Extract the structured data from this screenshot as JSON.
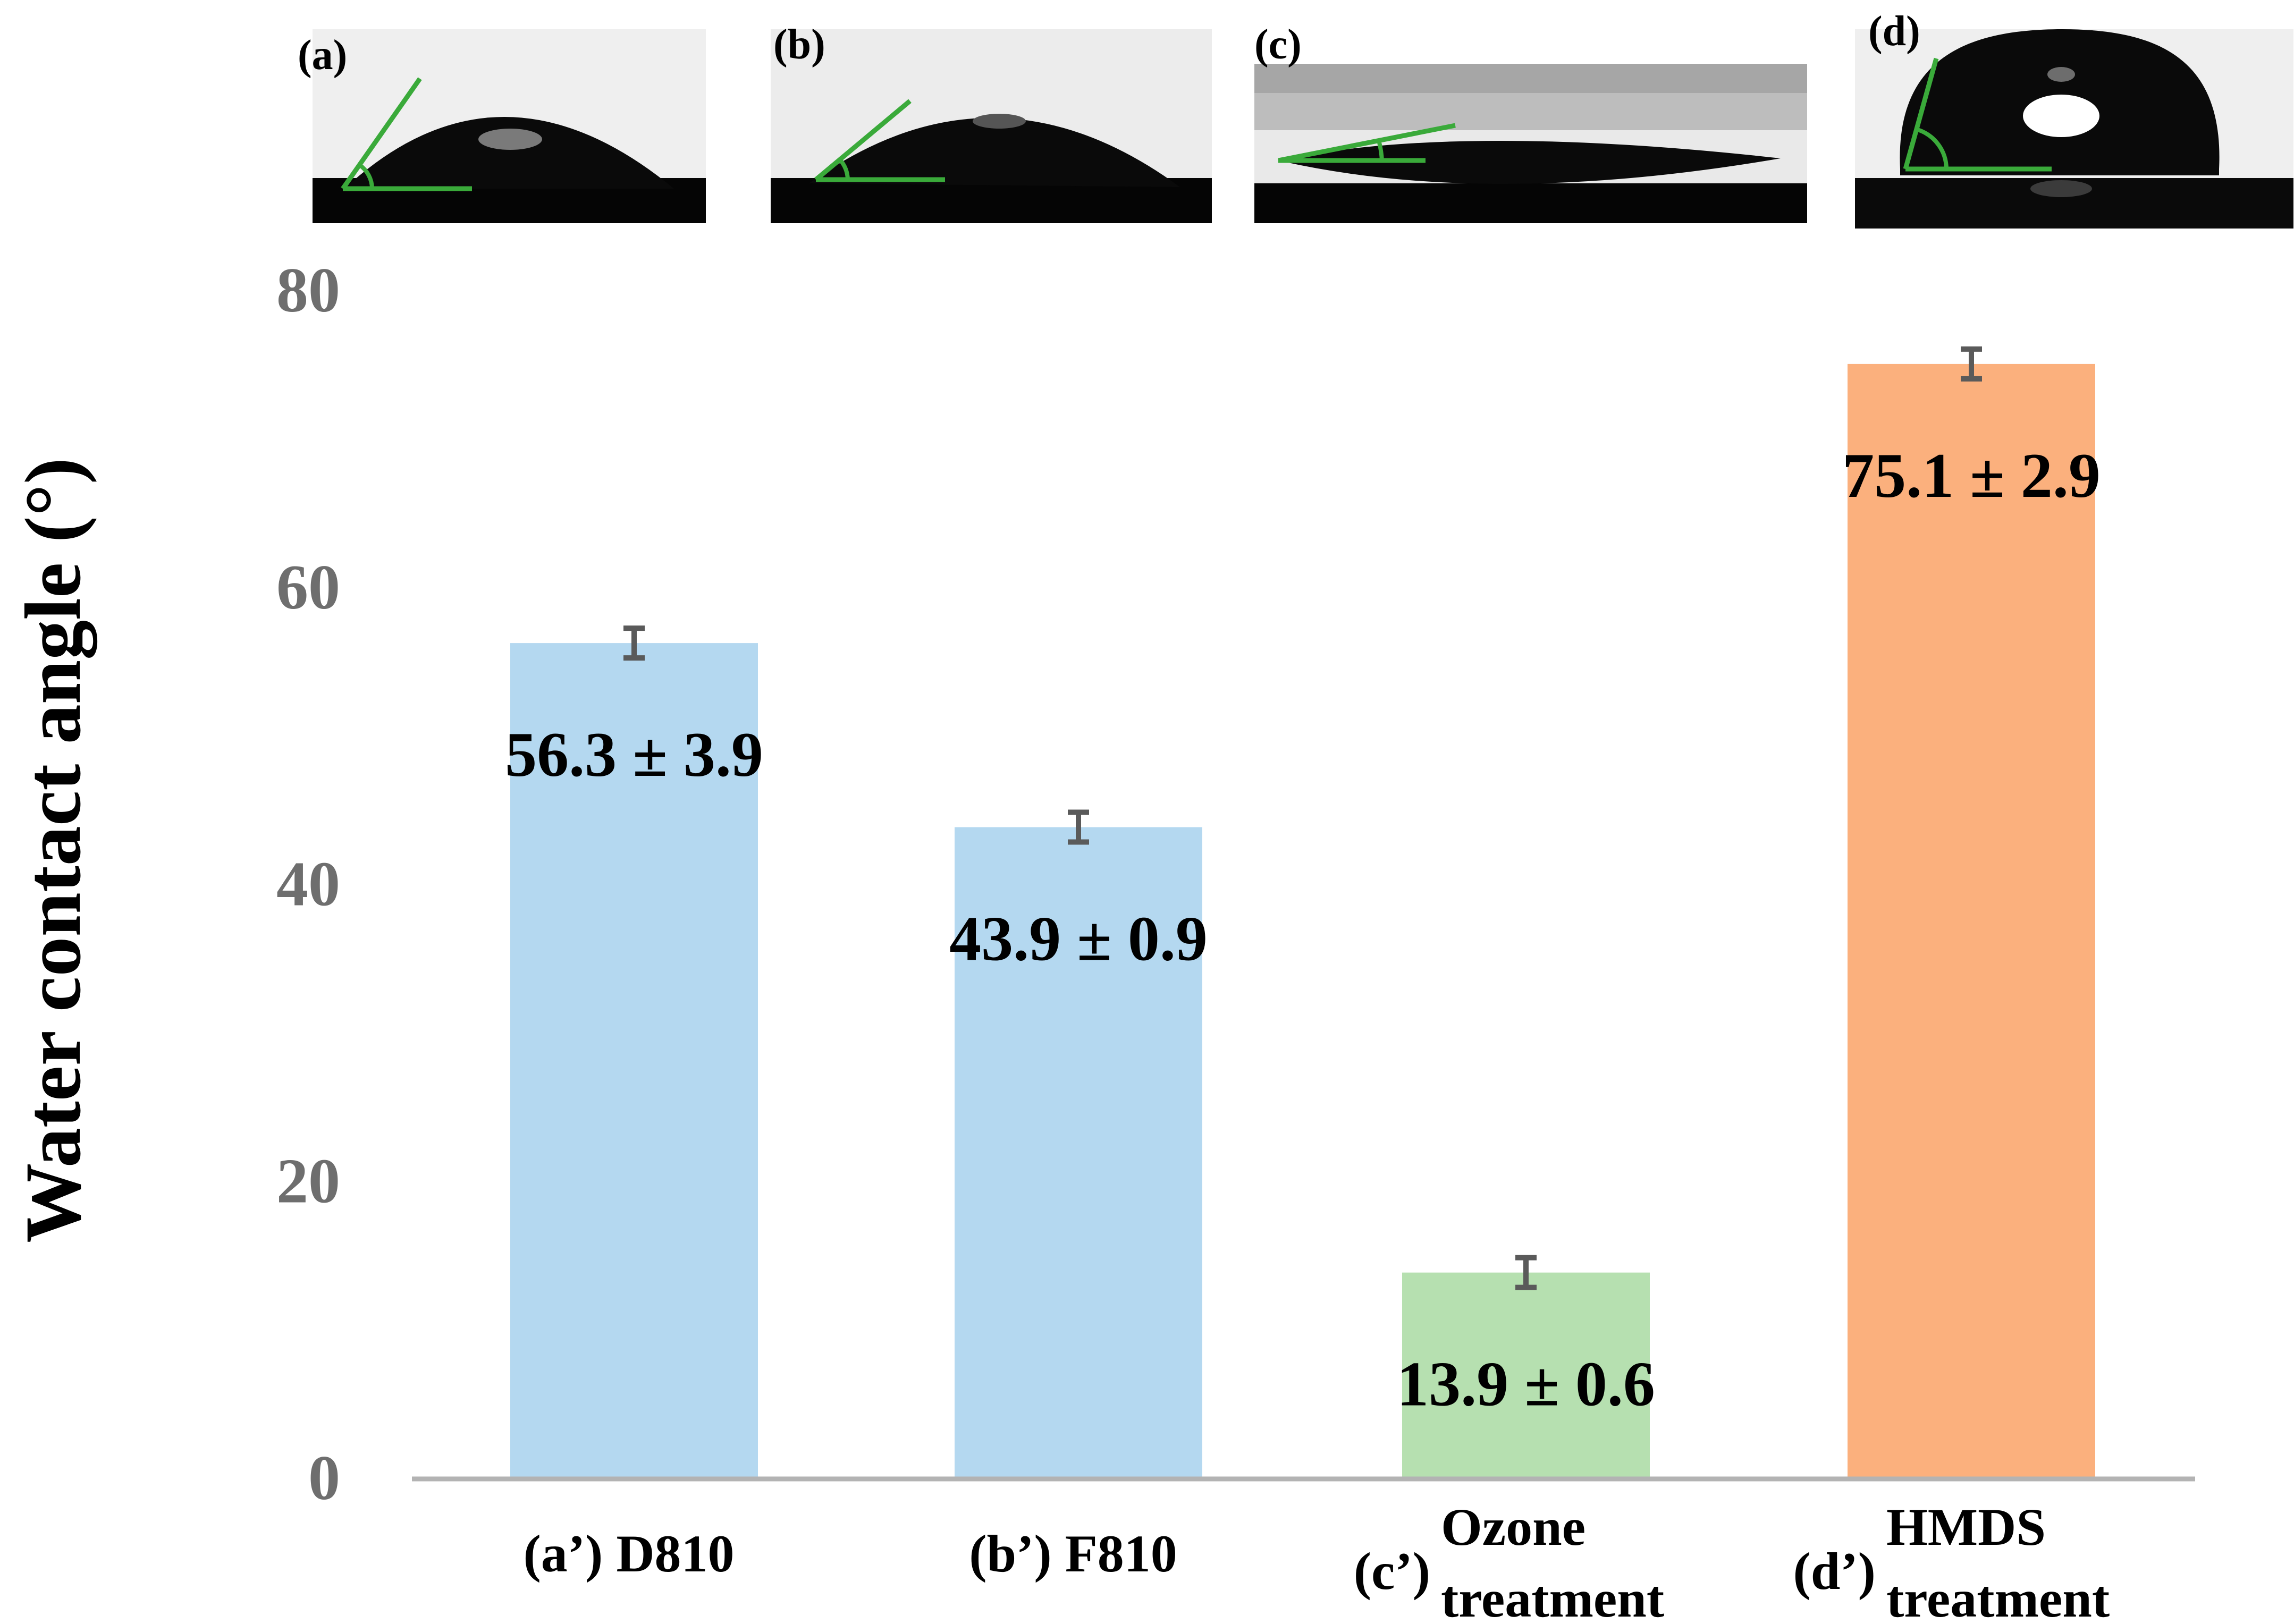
{
  "photos": [
    {
      "label": "(a)"
    },
    {
      "label": "(b)"
    },
    {
      "label": "(c)"
    },
    {
      "label": "(d)"
    }
  ],
  "colors": {
    "blue": "#b4d8f0",
    "green": "#b6e0b0",
    "orange": "#fbb07d",
    "axis": "#b3b3b3",
    "tick_text": "#6e6e6e",
    "error_bar": "#5a5a5a",
    "angle_line": "#3aaa3a"
  },
  "chart_data": {
    "type": "bar",
    "ylabel": "Water contact angle (°)",
    "ylim": [
      0,
      80
    ],
    "yticks": [
      "0",
      "20",
      "40",
      "60",
      "80"
    ],
    "grid": false,
    "categories": [
      {
        "prefix": "(a’) D810",
        "line1": "",
        "line2": ""
      },
      {
        "prefix": "(b’) F810",
        "line1": "",
        "line2": ""
      },
      {
        "prefix": "(c’)",
        "line1": "Ozone",
        "line2": "treatment"
      },
      {
        "prefix": "(d’)",
        "line1": "HMDS",
        "line2": "treatment"
      }
    ],
    "values": [
      56.3,
      43.9,
      13.9,
      75.1
    ],
    "errors": [
      3.9,
      0.9,
      0.6,
      2.9
    ],
    "bar_colors": [
      "#b4d8f0",
      "#b4d8f0",
      "#b6e0b0",
      "#fbb07d"
    ],
    "data_labels": [
      "56.3 ± 3.9",
      "43.9 ± 0.9",
      "13.9 ± 0.6",
      "75.1 ± 2.9"
    ]
  }
}
